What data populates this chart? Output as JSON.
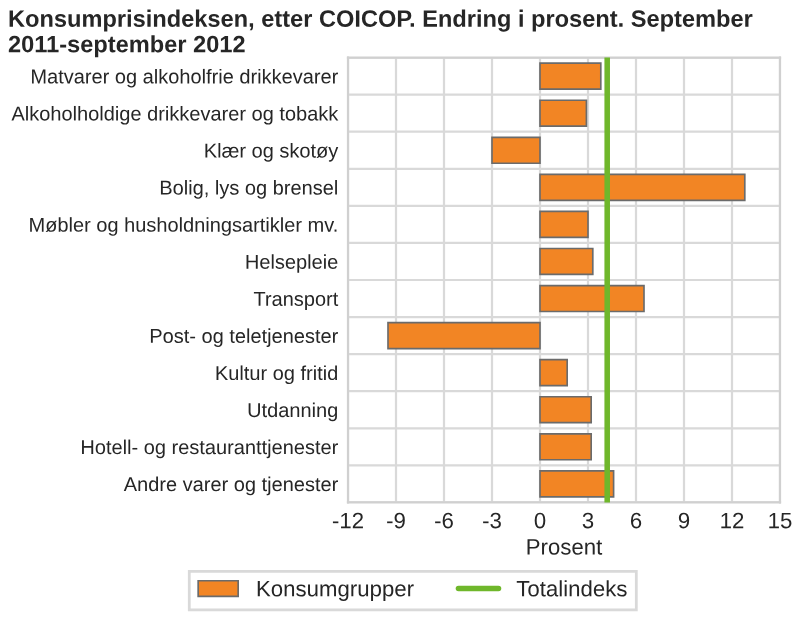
{
  "chart_data": {
    "type": "bar",
    "orientation": "horizontal",
    "title": "Konsumprisindeksen, etter COICOP. Endring i prosent. September 2011-september 2012",
    "xlabel": "Prosent",
    "categories": [
      "Matvarer og alkoholfrie drikkevarer",
      "Alkoholholdige drikkevarer og tobakk",
      "Klær og skotøy",
      "Bolig, lys og brensel",
      "Møbler og husholdningsartikler mv.",
      "Helsepleie",
      "Transport",
      "Post- og teletjenester",
      "Kultur og fritid",
      "Utdanning",
      "Hotell- og restauranttjenester",
      "Andre varer og tjenester"
    ],
    "series": [
      {
        "name": "Konsumgrupper",
        "color": "#f28524",
        "values": [
          3.8,
          2.9,
          -3.0,
          12.8,
          3.0,
          3.3,
          6.5,
          -9.5,
          1.7,
          3.2,
          3.2,
          4.6
        ]
      }
    ],
    "ref_lines": [
      {
        "axis": "x",
        "value": 4.2,
        "label": "Totalindeks",
        "color": "#6fb72b"
      }
    ],
    "xlim": [
      -12,
      15
    ],
    "xticks": [
      -12,
      -9,
      -6,
      -3,
      0,
      3,
      6,
      9,
      12,
      15
    ],
    "grid": true,
    "legend": "bottom"
  }
}
